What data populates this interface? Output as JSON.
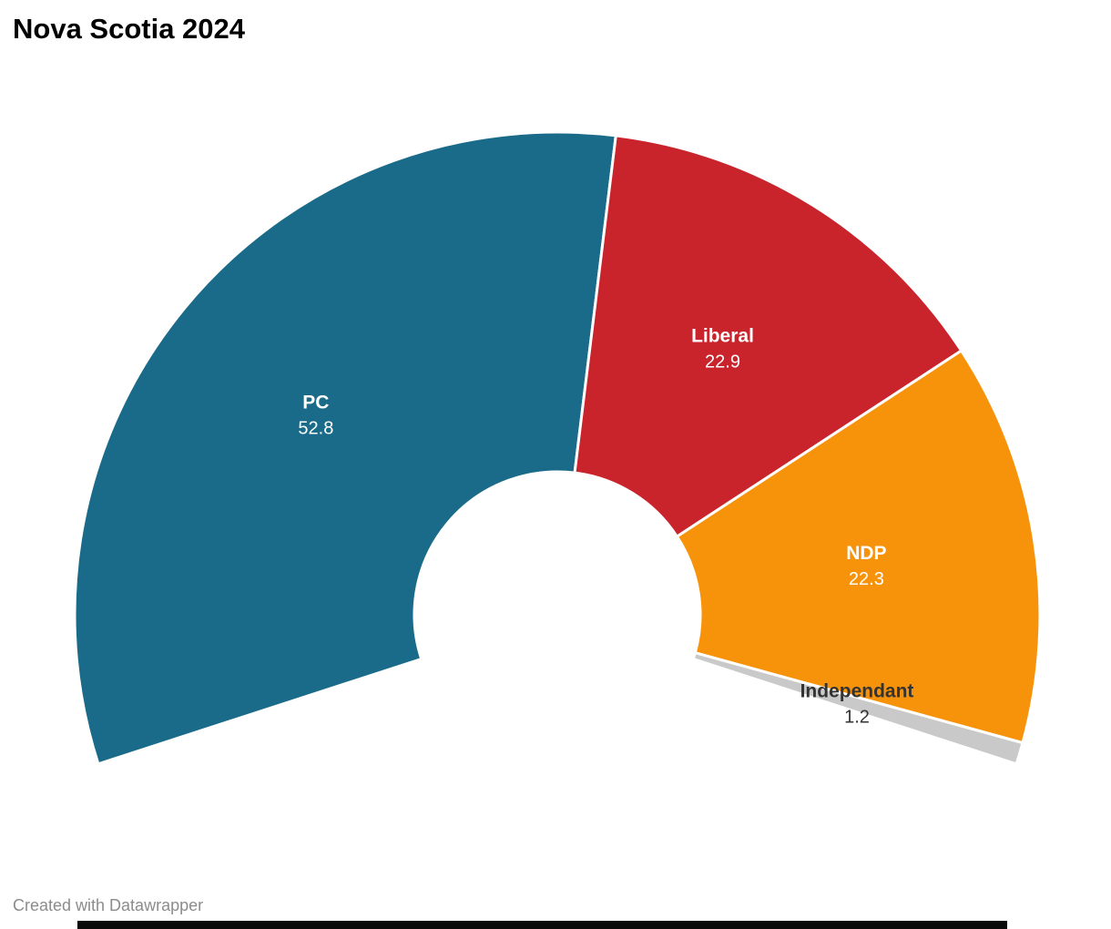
{
  "page": {
    "title": "Nova Scotia 2024",
    "footer_credit": "Created with Datawrapper"
  },
  "chart_data": {
    "type": "pie",
    "variant": "half-donut-gauge",
    "title": "Nova Scotia 2024",
    "series": [
      {
        "name": "PC",
        "value": 52.8,
        "color": "#1a6b8a",
        "label_color": "#ffffff"
      },
      {
        "name": "Liberal",
        "value": 22.9,
        "color": "#c9242b",
        "label_color": "#ffffff"
      },
      {
        "name": "NDP",
        "value": 22.3,
        "color": "#f7930a",
        "label_color": "#ffffff"
      },
      {
        "name": "Independant",
        "value": 1.2,
        "color": "#c9c9c9",
        "label_color": "#333333"
      }
    ],
    "layout": {
      "start_angle_deg": 198,
      "end_angle_deg": -18,
      "labels": "on-slices",
      "legend": "none",
      "separator_color": "#ffffff"
    }
  }
}
